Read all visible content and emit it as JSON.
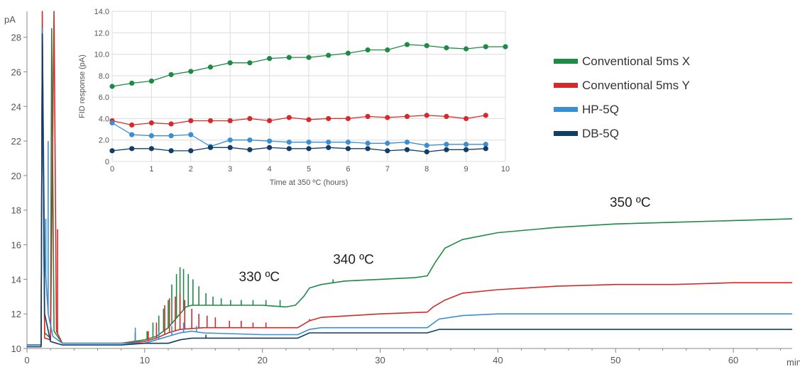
{
  "chart_data": [
    {
      "type": "line",
      "ylabel": "pA",
      "xlabel": "min",
      "xlim": [
        0,
        65
      ],
      "ylim": [
        10,
        29.5
      ],
      "x_ticks": [
        0,
        10,
        20,
        30,
        40,
        50,
        60
      ],
      "y_ticks": [
        10,
        12,
        14,
        16,
        18,
        20,
        22,
        24,
        26,
        28
      ],
      "annotations": [
        {
          "text": "330 ºC",
          "x": 18.0,
          "y": 13.9
        },
        {
          "text": "340 ºC",
          "x": 26.0,
          "y": 14.9
        },
        {
          "text": "350 ºC",
          "x": 49.5,
          "y": 18.2
        }
      ],
      "series": [
        {
          "name": "Conventional 5ms X",
          "color": "#1e8a44",
          "points": [
            [
              0,
              10.2
            ],
            [
              1.2,
              10.2
            ],
            [
              1.3,
              28.5
            ],
            [
              1.5,
              10.9
            ],
            [
              2,
              10.6
            ],
            [
              2.1,
              28.5
            ],
            [
              2.3,
              11.0
            ],
            [
              3,
              10.3
            ],
            [
              8,
              10.3
            ],
            [
              10,
              10.5
            ],
            [
              11,
              10.7
            ],
            [
              12,
              11.2
            ],
            [
              13,
              12.0
            ],
            [
              13.5,
              12.4
            ],
            [
              14,
              12.5
            ],
            [
              20,
              12.5
            ],
            [
              22,
              12.4
            ],
            [
              22.8,
              12.5
            ],
            [
              23.5,
              13.0
            ],
            [
              24,
              13.5
            ],
            [
              25,
              13.7
            ],
            [
              27,
              13.9
            ],
            [
              30,
              14.0
            ],
            [
              33,
              14.1
            ],
            [
              34,
              14.2
            ],
            [
              34.7,
              15.0
            ],
            [
              35.5,
              15.8
            ],
            [
              37,
              16.3
            ],
            [
              40,
              16.7
            ],
            [
              45,
              17.0
            ],
            [
              50,
              17.2
            ],
            [
              55,
              17.3
            ],
            [
              60,
              17.4
            ],
            [
              65,
              17.5
            ]
          ],
          "spikes": [
            [
              9.2,
              10.9
            ],
            [
              10.2,
              11.0
            ],
            [
              10.7,
              11.5
            ],
            [
              11.2,
              11.9
            ],
            [
              11.6,
              12.3
            ],
            [
              12,
              12.8
            ],
            [
              12.3,
              13.7
            ],
            [
              12.7,
              14.3
            ],
            [
              13.0,
              14.7
            ],
            [
              13.3,
              14.6
            ],
            [
              13.7,
              14.3
            ],
            [
              14.1,
              14.0
            ],
            [
              14.6,
              13.6
            ],
            [
              15.2,
              13.2
            ],
            [
              15.8,
              13.0
            ],
            [
              16.5,
              12.9
            ],
            [
              17.3,
              12.8
            ],
            [
              18.2,
              12.8
            ],
            [
              19.2,
              12.8
            ],
            [
              20.3,
              12.8
            ],
            [
              21.5,
              12.8
            ],
            [
              26,
              14.0
            ],
            [
              28,
              13.9
            ]
          ]
        },
        {
          "name": "Conventional 5ms Y",
          "color": "#d62a2a",
          "points": [
            [
              0,
              10.2
            ],
            [
              1.2,
              10.2
            ],
            [
              1.3,
              29.5
            ],
            [
              1.5,
              10.6
            ],
            [
              2,
              10.5
            ],
            [
              2.3,
              29.5
            ],
            [
              2.5,
              11.0
            ],
            [
              3,
              10.3
            ],
            [
              8,
              10.3
            ],
            [
              10,
              10.4
            ],
            [
              11,
              10.6
            ],
            [
              12,
              10.9
            ],
            [
              13,
              11.1
            ],
            [
              15,
              11.2
            ],
            [
              20,
              11.2
            ],
            [
              23,
              11.2
            ],
            [
              24,
              11.6
            ],
            [
              25,
              11.8
            ],
            [
              30,
              12.0
            ],
            [
              34,
              12.1
            ],
            [
              34.5,
              12.4
            ],
            [
              35.5,
              12.8
            ],
            [
              37,
              13.2
            ],
            [
              40,
              13.4
            ],
            [
              45,
              13.6
            ],
            [
              50,
              13.7
            ],
            [
              55,
              13.7
            ],
            [
              60,
              13.8
            ],
            [
              65,
              13.8
            ]
          ],
          "spikes": [
            [
              2.6,
              16.9
            ],
            [
              9.2,
              10.9
            ],
            [
              10.3,
              11.0
            ],
            [
              11,
              11.5
            ],
            [
              11.7,
              12.5
            ],
            [
              12.1,
              12.9
            ],
            [
              12.6,
              13.0
            ],
            [
              13.0,
              13.2
            ],
            [
              13.4,
              12.8
            ],
            [
              14,
              12.3
            ],
            [
              14.6,
              12.0
            ],
            [
              15.3,
              11.9
            ],
            [
              16,
              11.8
            ],
            [
              17.2,
              11.6
            ],
            [
              18.2,
              11.6
            ],
            [
              19.2,
              11.5
            ],
            [
              20.3,
              11.5
            ],
            [
              24,
              11.7
            ]
          ]
        },
        {
          "name": "HP-5Q",
          "color": "#3a8fd2",
          "points": [
            [
              0,
              10.2
            ],
            [
              1.2,
              10.2
            ],
            [
              1.3,
              28.5
            ],
            [
              1.5,
              15.2
            ],
            [
              1.8,
              12.0
            ],
            [
              2.2,
              10.7
            ],
            [
              3,
              10.3
            ],
            [
              8,
              10.3
            ],
            [
              10,
              10.3
            ],
            [
              11,
              10.5
            ],
            [
              12,
              10.7
            ],
            [
              13,
              10.9
            ],
            [
              14,
              11.0
            ],
            [
              15,
              10.9
            ],
            [
              20,
              10.8
            ],
            [
              23,
              10.8
            ],
            [
              24,
              11.1
            ],
            [
              25,
              11.2
            ],
            [
              30,
              11.2
            ],
            [
              34,
              11.2
            ],
            [
              35,
              11.7
            ],
            [
              37,
              11.9
            ],
            [
              40,
              12.0
            ],
            [
              45,
              12.0
            ],
            [
              50,
              12.0
            ],
            [
              55,
              12.0
            ],
            [
              60,
              12.0
            ],
            [
              65,
              12.0
            ]
          ],
          "spikes": [
            [
              1.6,
              17.5
            ],
            [
              1.8,
              22.0
            ],
            [
              9.2,
              11.2
            ],
            [
              11.2,
              11.0
            ],
            [
              12.3,
              11.3
            ],
            [
              13.3,
              11.5
            ],
            [
              14.4,
              11.3
            ]
          ]
        },
        {
          "name": "DB-5Q",
          "color": "#123d66",
          "points": [
            [
              0,
              10.1
            ],
            [
              1.2,
              10.1
            ],
            [
              1.3,
              28.2
            ],
            [
              1.5,
              12.0
            ],
            [
              2,
              10.4
            ],
            [
              3,
              10.2
            ],
            [
              8,
              10.2
            ],
            [
              10,
              10.3
            ],
            [
              12,
              10.3
            ],
            [
              13,
              10.5
            ],
            [
              14,
              10.6
            ],
            [
              20,
              10.6
            ],
            [
              23,
              10.6
            ],
            [
              24,
              10.9
            ],
            [
              25,
              10.9
            ],
            [
              30,
              10.9
            ],
            [
              34,
              10.9
            ],
            [
              35,
              11.1
            ],
            [
              40,
              11.1
            ],
            [
              50,
              11.1
            ],
            [
              60,
              11.1
            ],
            [
              65,
              11.1
            ]
          ],
          "spikes": [
            [
              15.2,
              10.8
            ]
          ]
        }
      ]
    },
    {
      "type": "line",
      "xlabel": "Time at 350 ºC (hours)",
      "ylabel": "FID response (pA)",
      "xlim": [
        0,
        10
      ],
      "ylim": [
        0,
        14
      ],
      "x_ticks": [
        0,
        1,
        2,
        3,
        4,
        5,
        6,
        7,
        8,
        9,
        10
      ],
      "y_ticks": [
        "0",
        "2.0",
        "4.0",
        "6.0",
        "8.0",
        "10.0",
        "12.0",
        "14.0"
      ],
      "grid": true,
      "x": [
        0,
        0.5,
        1,
        1.5,
        2,
        2.5,
        3,
        3.5,
        4,
        4.5,
        5,
        5.5,
        6,
        6.5,
        7,
        7.5,
        8,
        8.5,
        9,
        9.5,
        10
      ],
      "series": [
        {
          "name": "Conventional 5ms X",
          "color": "#1e8a44",
          "values": [
            7.0,
            7.3,
            7.5,
            8.1,
            8.4,
            8.8,
            9.2,
            9.2,
            9.6,
            9.7,
            9.7,
            9.9,
            10.1,
            10.4,
            10.4,
            10.9,
            10.8,
            10.6,
            10.5,
            10.7,
            10.7
          ]
        },
        {
          "name": "Conventional 5ms Y",
          "color": "#d62a2a",
          "values": [
            3.8,
            3.4,
            3.6,
            3.5,
            3.8,
            3.8,
            3.8,
            4.0,
            3.8,
            4.1,
            3.9,
            4.0,
            4.0,
            4.2,
            4.1,
            4.2,
            4.3,
            4.2,
            4.0,
            4.3,
            null
          ]
        },
        {
          "name": "HP-5Q",
          "color": "#3a8fd2",
          "values": [
            3.6,
            2.5,
            2.4,
            2.4,
            2.5,
            1.4,
            2.0,
            2.0,
            1.9,
            1.8,
            1.8,
            1.8,
            1.8,
            1.7,
            1.7,
            1.8,
            1.5,
            1.6,
            1.6,
            1.6,
            null
          ]
        },
        {
          "name": "DB-5Q",
          "color": "#123d66",
          "values": [
            1.0,
            1.2,
            1.2,
            1.0,
            1.0,
            1.3,
            1.3,
            1.1,
            1.3,
            1.2,
            1.2,
            1.3,
            1.2,
            1.2,
            1.0,
            1.1,
            0.9,
            1.1,
            1.1,
            1.2,
            null
          ]
        }
      ]
    }
  ],
  "legend": [
    {
      "label": "Conventional 5ms X",
      "color": "#1e8a44"
    },
    {
      "label": "Conventional 5ms Y",
      "color": "#d62a2a"
    },
    {
      "label": "HP-5Q",
      "color": "#3a8fd2"
    },
    {
      "label": "DB-5Q",
      "color": "#123d66"
    }
  ]
}
